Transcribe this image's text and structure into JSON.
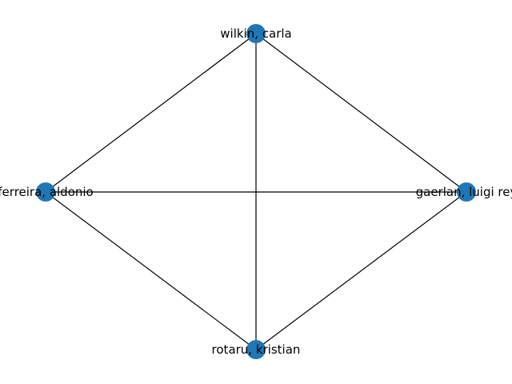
{
  "graph": {
    "node_color": "#1f77b4",
    "edge_color": "#000000",
    "nodes": [
      {
        "id": "wilkin",
        "label": "wilkin, carla"
      },
      {
        "id": "ferreira",
        "label": "ferreira, aldonio"
      },
      {
        "id": "gaerlan",
        "label": "gaerlan, luigi rey"
      },
      {
        "id": "rotaru",
        "label": "rotaru, kristian"
      }
    ],
    "edges": [
      [
        "wilkin",
        "ferreira"
      ],
      [
        "wilkin",
        "gaerlan"
      ],
      [
        "wilkin",
        "rotaru"
      ],
      [
        "ferreira",
        "gaerlan"
      ],
      [
        "ferreira",
        "rotaru"
      ],
      [
        "gaerlan",
        "rotaru"
      ]
    ]
  }
}
